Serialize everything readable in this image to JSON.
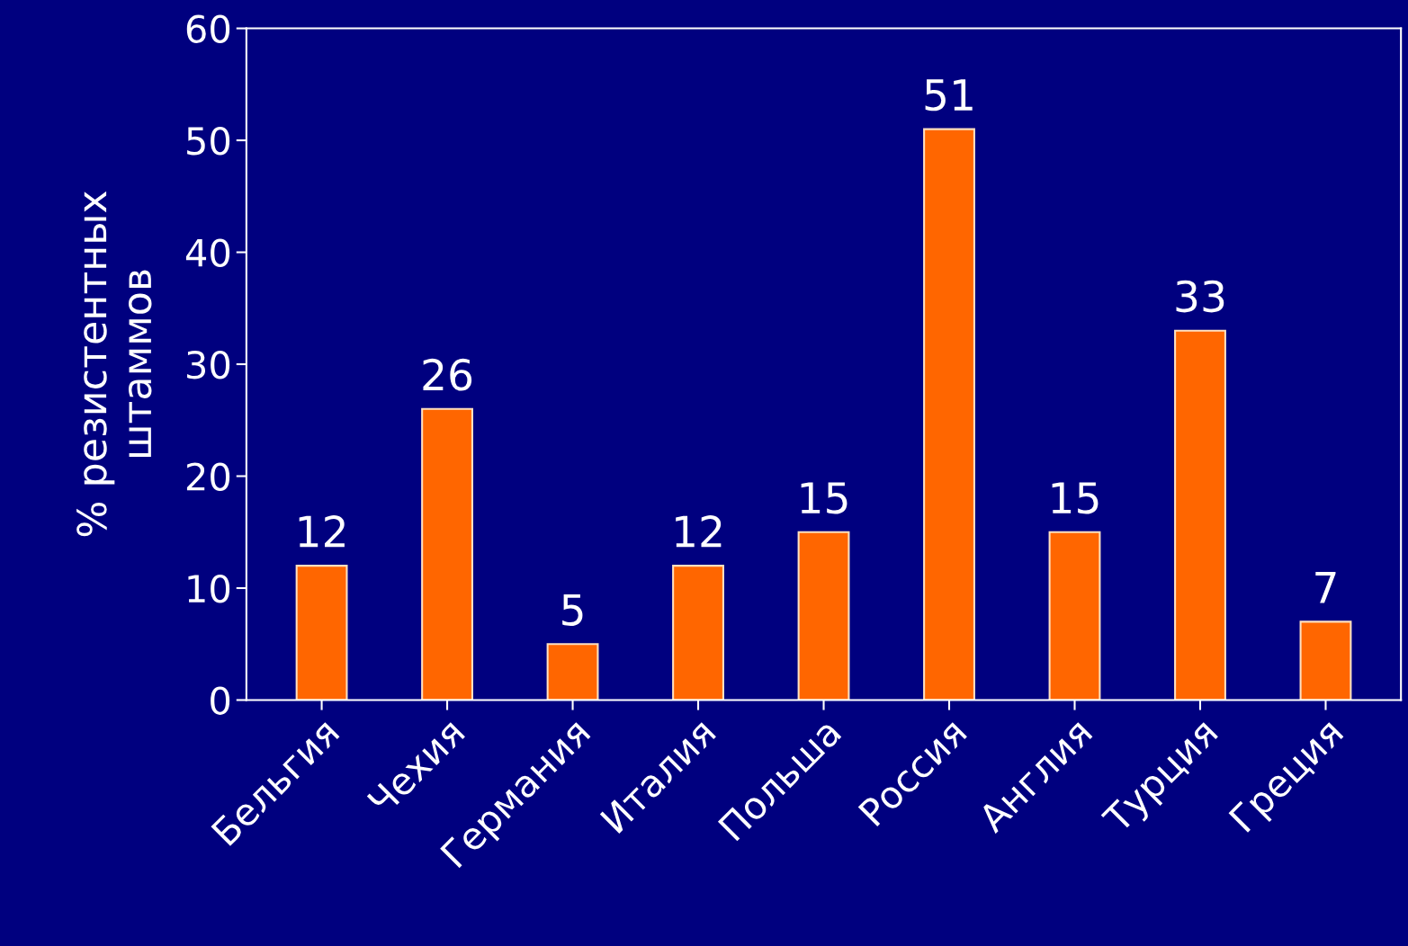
{
  "chart_data": {
    "type": "bar",
    "ylabel": "% резистентных\nштаммов",
    "categories": [
      "Бельгия",
      "Чехия",
      "Германия",
      "Италия",
      "Польша",
      "Россия",
      "Англия",
      "Турция",
      "Греция"
    ],
    "values": [
      12,
      26,
      5,
      12,
      15,
      51,
      15,
      33,
      7
    ],
    "color": "#ff6600",
    "ylim": [
      0,
      60
    ],
    "yticks": [
      0,
      10,
      20,
      30,
      40,
      50,
      60
    ],
    "data_labels": true,
    "grid": false,
    "legend": false
  }
}
